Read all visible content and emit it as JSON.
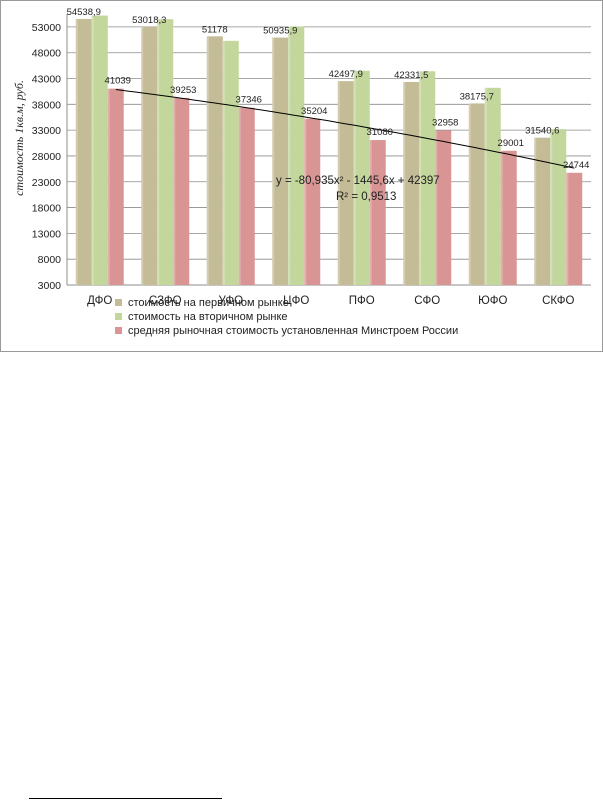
{
  "chart_data": {
    "type": "bar",
    "categories": [
      "ДФО",
      "СЗФО",
      "УФО",
      "ЦФО",
      "ПФО",
      "СФО",
      "ЮФО",
      "СКФО"
    ],
    "series": [
      {
        "name": "стоимость на первичном рынке",
        "color": "#c4bc96",
        "values": [
          54538.9,
          53018.3,
          51178,
          50935.9,
          42497.9,
          42331.5,
          38175.7,
          31540.6
        ],
        "labels": [
          "54538,9",
          "53018,3",
          "51178",
          "50935,9",
          "42497,9",
          "42331,5",
          "38175,7",
          "31540,6"
        ]
      },
      {
        "name": "стоимость на вторичном рынке",
        "color": "#c3d69b",
        "values": [
          55200,
          54500,
          50300,
          53100,
          44500,
          44400,
          41200,
          33200
        ],
        "labels": []
      },
      {
        "name": " средняя рыночная стоимость установленная Минстроем России",
        "color": "#d99594",
        "values": [
          41039,
          39253,
          37346,
          35204,
          31080,
          32958,
          29001,
          24744
        ],
        "labels": [
          "41039",
          "39253",
          "37346",
          "35204",
          "31080",
          "32958",
          "29001",
          "24744"
        ]
      }
    ],
    "ylabel": "стоимость 1кв.м, руб.",
    "ylim": [
      3000,
      55500
    ],
    "yticks": [
      "3000",
      "8000",
      "13000",
      "18000",
      "23000",
      "28000",
      "33000",
      "38000",
      "43000",
      "48000",
      "53000"
    ],
    "grid": true,
    "legend": "bottom",
    "trendline": {
      "type": "polynomial",
      "equation": "y = -80,935x² - 1445,6x + 42397",
      "r2": "R² = 0,9513",
      "coefficients": [
        -80.935,
        -1445.6,
        42397
      ],
      "color": "#000000"
    },
    "colors": {
      "grid": "#8c8c8c",
      "axis": "#8c8c8c",
      "frame": "#9a9a9a"
    }
  }
}
